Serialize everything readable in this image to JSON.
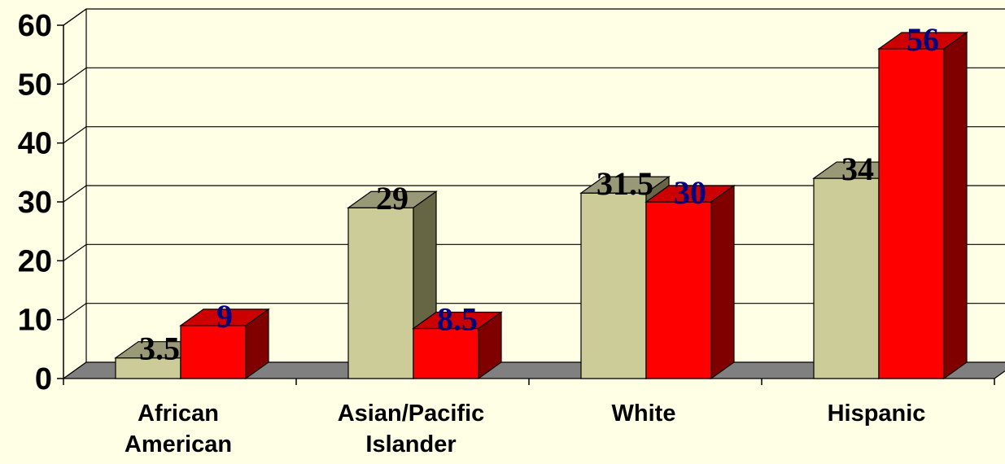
{
  "chart_data": {
    "type": "bar",
    "categories": [
      [
        "African",
        "American"
      ],
      [
        "Asian/Pacific",
        "Islander"
      ],
      [
        "White"
      ],
      [
        "Hispanic"
      ]
    ],
    "series": [
      {
        "values": [
          3.5,
          29,
          31.5,
          34
        ],
        "color": "#cccc99",
        "side_color": "#666644",
        "top_color": "#999977",
        "label_color": "#000000"
      },
      {
        "values": [
          9,
          8.5,
          30,
          56
        ],
        "color": "#ff0000",
        "side_color": "#800000",
        "top_color": "#cc0000",
        "label_color": "#000080"
      }
    ],
    "yticks": [
      0,
      10,
      20,
      30,
      40,
      50,
      60
    ],
    "ylim": [
      0,
      60
    ],
    "grid": true,
    "legend": "none",
    "background": "#ffffe5",
    "floor_color": "#808080"
  }
}
